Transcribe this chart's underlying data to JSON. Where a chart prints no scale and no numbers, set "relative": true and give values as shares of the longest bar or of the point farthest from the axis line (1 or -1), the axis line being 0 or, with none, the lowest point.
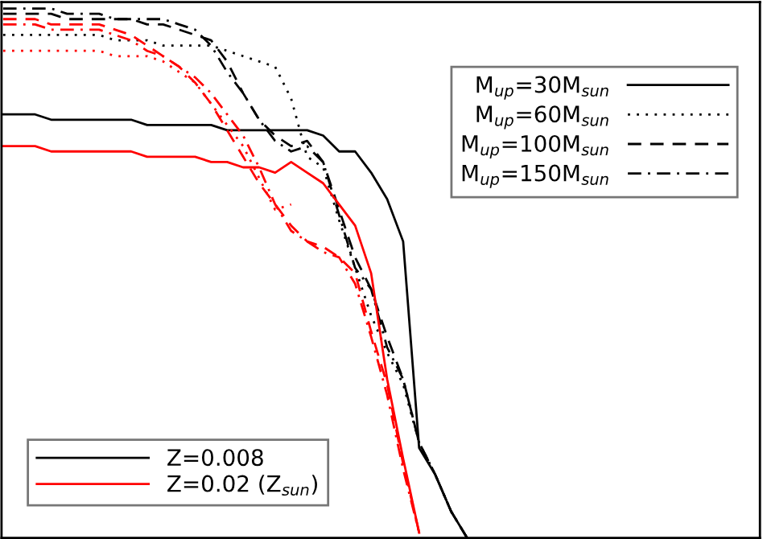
{
  "chart_data": {
    "type": "line",
    "relative": true,
    "grid": false,
    "legend": "top right",
    "marker": "none",
    "categories": [
      null,
      null,
      null,
      null,
      null,
      null,
      null,
      null,
      null,
      null,
      null,
      null,
      null,
      null,
      null,
      null,
      null,
      null,
      null,
      null,
      null,
      null,
      null,
      null,
      null,
      null,
      null,
      null,
      null,
      null,
      null,
      null,
      null,
      null,
      null,
      null,
      null,
      null,
      null,
      null,
      null,
      null,
      null,
      null,
      null,
      null,
      null,
      null
    ],
    "series": [
      {
        "name": "M$_{up}$=30M$_{sun}$",
        "color": "#000000",
        "line_style": "solid",
        "values": [
          0.8,
          0.8,
          0.8,
          0.79,
          0.79,
          0.79,
          0.79,
          0.79,
          0.79,
          0.78,
          0.78,
          0.78,
          0.78,
          0.78,
          0.77,
          0.77,
          0.77,
          0.77,
          0.77,
          0.77,
          0.76,
          0.73,
          0.73,
          0.69,
          0.64,
          0.56,
          0.17,
          0.12,
          0.05,
          0.0,
          null,
          null,
          null,
          null,
          null,
          null,
          null,
          null,
          null,
          null,
          null,
          null,
          null,
          null,
          null,
          null,
          null,
          null
        ]
      },
      {
        "name": "M$_{up}$=60M$_{sun}$",
        "color": "#000000",
        "line_style": "dotted",
        "values": [
          0.95,
          0.95,
          0.95,
          0.95,
          0.95,
          0.95,
          0.95,
          0.94,
          0.94,
          0.94,
          0.93,
          0.93,
          0.93,
          0.93,
          0.92,
          0.91,
          0.9,
          0.89,
          0.83,
          0.72,
          0.7,
          0.6,
          0.51,
          0.42,
          0.35,
          0.29,
          0.18,
          0.12,
          0.05,
          0.0,
          null,
          null,
          null,
          null,
          null,
          null,
          null,
          null,
          null,
          null,
          null,
          null,
          null,
          null,
          null,
          null,
          null,
          null
        ]
      },
      {
        "name": "M$_{up}$=100M$_{sun}$",
        "color": "#000000",
        "line_style": "dashed",
        "values": [
          0.99,
          0.99,
          0.99,
          0.99,
          0.98,
          0.98,
          0.98,
          0.98,
          0.98,
          0.97,
          0.97,
          0.96,
          0.95,
          0.94,
          0.9,
          0.84,
          0.79,
          0.76,
          0.74,
          0.75,
          0.71,
          0.62,
          0.53,
          0.47,
          0.38,
          0.3,
          0.18,
          0.12,
          0.05,
          0.0,
          null,
          null,
          null,
          null,
          null,
          null,
          null,
          null,
          null,
          null,
          null,
          null,
          null,
          null,
          null,
          null,
          null,
          null
        ]
      },
      {
        "name": "M$_{up}$=150M$_{sun}$",
        "color": "#000000",
        "line_style": "dashdot",
        "values": [
          1.0,
          1.0,
          1.0,
          1.0,
          0.99,
          0.99,
          0.99,
          0.98,
          0.98,
          0.98,
          0.98,
          0.97,
          0.96,
          0.93,
          0.88,
          0.84,
          0.79,
          0.75,
          0.73,
          0.74,
          0.71,
          0.61,
          0.51,
          0.47,
          0.36,
          0.3,
          0.18,
          0.12,
          0.05,
          0.0,
          null,
          null,
          null,
          null,
          null,
          null,
          null,
          null,
          null,
          null,
          null,
          null,
          null,
          null,
          null,
          null,
          null,
          null
        ]
      },
      {
        "color": "#ff0000",
        "line_style": "solid",
        "values": [
          0.74,
          0.74,
          0.74,
          0.73,
          0.73,
          0.73,
          0.73,
          0.73,
          0.73,
          0.72,
          0.72,
          0.72,
          0.72,
          0.71,
          0.71,
          0.7,
          0.7,
          0.69,
          0.71,
          0.69,
          0.67,
          0.63,
          0.59,
          0.5,
          0.3,
          0.15,
          0.01,
          null,
          null,
          null,
          null,
          null,
          null,
          null,
          null,
          null,
          null,
          null,
          null,
          null,
          null,
          null,
          null,
          null,
          null,
          null,
          null,
          null
        ]
      },
      {
        "color": "#ff0000",
        "line_style": "dotted",
        "values": [
          0.92,
          0.92,
          0.92,
          0.92,
          0.92,
          0.92,
          0.92,
          0.91,
          0.91,
          0.91,
          0.9,
          0.88,
          0.86,
          0.82,
          0.78,
          0.74,
          0.68,
          0.62,
          0.63,
          null,
          null,
          null,
          null,
          null,
          null,
          null,
          null,
          null,
          null,
          null,
          null,
          null,
          null,
          null,
          null,
          null,
          null,
          null,
          null,
          null,
          null,
          null,
          null,
          null,
          null,
          null,
          null,
          null
        ]
      },
      {
        "color": "#ff0000",
        "line_style": "dashed",
        "values": [
          0.98,
          0.98,
          0.98,
          0.97,
          0.97,
          0.97,
          0.97,
          0.96,
          0.95,
          0.93,
          0.91,
          0.89,
          0.86,
          0.82,
          0.77,
          0.72,
          0.67,
          0.63,
          0.59,
          0.56,
          0.55,
          0.53,
          0.5,
          0.39,
          0.29,
          0.14,
          0.01,
          null,
          null,
          null,
          null,
          null,
          null,
          null,
          null,
          null,
          null,
          null,
          null,
          null,
          null,
          null,
          null,
          null,
          null,
          null,
          null,
          null
        ]
      },
      {
        "color": "#ff0000",
        "line_style": "dashdot",
        "values": [
          0.97,
          0.97,
          0.97,
          0.96,
          0.96,
          0.96,
          0.96,
          0.95,
          0.94,
          0.92,
          0.91,
          0.89,
          0.87,
          0.84,
          0.8,
          0.76,
          0.7,
          0.63,
          0.58,
          0.56,
          0.54,
          0.53,
          0.48,
          0.38,
          0.27,
          0.13,
          0.01,
          null,
          null,
          null,
          null,
          null,
          null,
          null,
          null,
          null,
          null,
          null,
          null,
          null,
          null,
          null,
          null,
          null,
          null,
          null,
          null,
          null
        ]
      }
    ],
    "annotations": [
      "Z=0.008",
      "Z=0.02 (Z$_{sun}$)"
    ]
  }
}
